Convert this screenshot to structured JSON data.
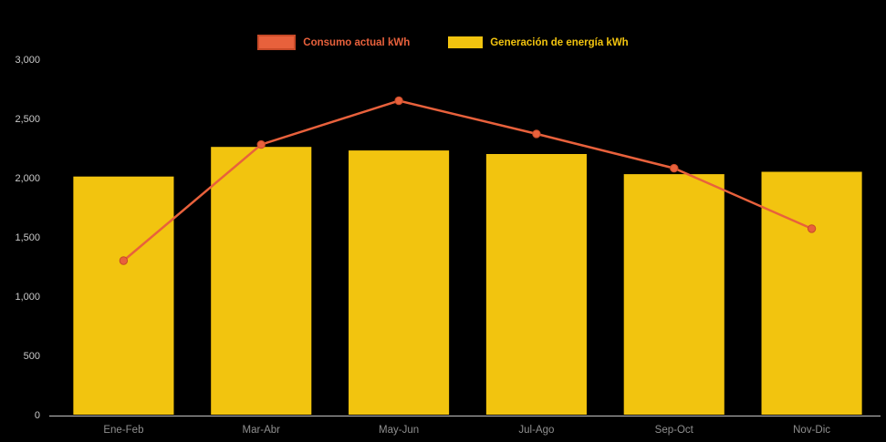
{
  "chart_data": {
    "type": "bar",
    "subtype": "bar-with-line-overlay",
    "title": "",
    "categories": [
      "Ene-Feb",
      "Mar-Abr",
      "May-Jun",
      "Jul-Ago",
      "Sep-Oct",
      "Nov-Dic"
    ],
    "series": [
      {
        "name": "Consumo actual kWh",
        "type": "line",
        "color": "#E8613C",
        "marker_stroke": "#C84A28",
        "values": [
          1300,
          2280,
          2650,
          2370,
          2080,
          1570
        ]
      },
      {
        "name": "Generación de energía kWh",
        "type": "bar",
        "color": "#F2C40F",
        "values": [
          2010,
          2260,
          2230,
          2200,
          2030,
          2050
        ]
      }
    ],
    "xlabel": "",
    "ylabel": "",
    "ylim": [
      0,
      3000
    ],
    "ytick_values": [
      0,
      500,
      1000,
      1500,
      2000,
      2500,
      3000
    ],
    "ytick_labels": [
      "0",
      "500",
      "1,000",
      "1,500",
      "2,000",
      "2,500",
      "3,000"
    ],
    "grid": false,
    "legend_position": "top-center",
    "background_color": "#000000",
    "axis_line_color": "#C2C2C2",
    "ytick_label_color": "#C9C9C9",
    "xtick_label_color": "#8F8F8F"
  }
}
